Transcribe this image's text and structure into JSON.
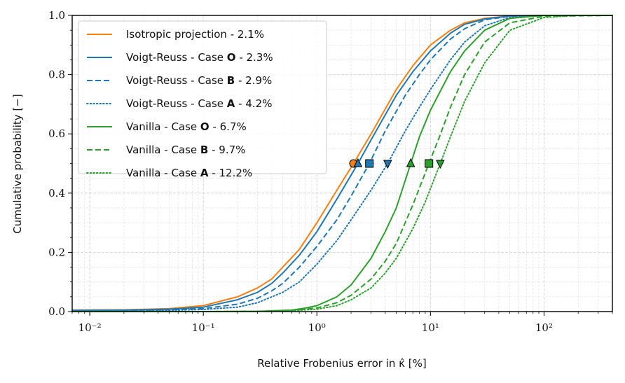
{
  "chart_data": {
    "type": "line",
    "xscale": "log",
    "xlim": [
      0.007,
      400
    ],
    "ylim": [
      0.0,
      1.0
    ],
    "xlabel": "Relative Frobenius error in κ̂ [%]",
    "ylabel": "Cumulative probability [−]",
    "x_ticks": [
      {
        "value": 0.01,
        "label": "10⁻²"
      },
      {
        "value": 0.1,
        "label": "10⁻¹"
      },
      {
        "value": 1,
        "label": "10⁰"
      },
      {
        "value": 10,
        "label": "10¹"
      },
      {
        "value": 100,
        "label": "10²"
      }
    ],
    "y_ticks": [
      {
        "value": 0.0,
        "label": "0.0"
      },
      {
        "value": 0.2,
        "label": "0.2"
      },
      {
        "value": 0.4,
        "label": "0.4"
      },
      {
        "value": 0.6,
        "label": "0.6"
      },
      {
        "value": 0.8,
        "label": "0.8"
      },
      {
        "value": 1.0,
        "label": "1.0"
      }
    ],
    "grid": true,
    "legend_position": "top-left",
    "series": [
      {
        "name": "Isotropic projection - 2.1%",
        "label": "Isotropic projection - ",
        "bold": "",
        "suffix": "2.1%",
        "color": "#ff7f0e",
        "style": "solid",
        "median": 2.1,
        "marker": "circle",
        "x": [
          0.007,
          0.02,
          0.05,
          0.1,
          0.2,
          0.3,
          0.4,
          0.5,
          0.7,
          1.0,
          1.5,
          2.1,
          3,
          5,
          7,
          10,
          15,
          20,
          30,
          50,
          100,
          400
        ],
        "y": [
          0.005,
          0.006,
          0.01,
          0.02,
          0.05,
          0.08,
          0.11,
          0.15,
          0.21,
          0.3,
          0.41,
          0.5,
          0.6,
          0.75,
          0.83,
          0.9,
          0.95,
          0.975,
          0.99,
          0.998,
          1.0,
          1.0
        ]
      },
      {
        "name": "Voigt-Reuss - Case O - 2.3%",
        "label": "Voigt-Reuss - Case ",
        "bold": "O",
        "suffix": " - 2.3%",
        "color": "#1f77b4",
        "style": "solid",
        "median": 2.3,
        "marker": "triangle-up",
        "x": [
          0.007,
          0.02,
          0.05,
          0.1,
          0.2,
          0.3,
          0.4,
          0.5,
          0.7,
          1.0,
          1.5,
          2.3,
          3,
          5,
          7,
          10,
          15,
          20,
          30,
          50,
          100,
          400
        ],
        "y": [
          0.004,
          0.005,
          0.008,
          0.015,
          0.04,
          0.065,
          0.095,
          0.13,
          0.19,
          0.27,
          0.38,
          0.5,
          0.58,
          0.73,
          0.81,
          0.88,
          0.94,
          0.97,
          0.988,
          0.998,
          1.0,
          1.0
        ]
      },
      {
        "name": "Voigt-Reuss - Case B - 2.9%",
        "label": "Voigt-Reuss - Case ",
        "bold": "B",
        "suffix": " - 2.9%",
        "color": "#1f77b4",
        "style": "dashed",
        "median": 2.9,
        "marker": "square",
        "x": [
          0.007,
          0.02,
          0.05,
          0.1,
          0.2,
          0.3,
          0.4,
          0.5,
          0.7,
          1.0,
          1.5,
          2.0,
          2.9,
          4,
          6,
          8,
          10,
          15,
          20,
          30,
          50,
          100,
          400
        ],
        "y": [
          0.003,
          0.004,
          0.006,
          0.01,
          0.025,
          0.045,
          0.07,
          0.095,
          0.15,
          0.22,
          0.31,
          0.39,
          0.5,
          0.61,
          0.73,
          0.8,
          0.85,
          0.92,
          0.955,
          0.985,
          0.997,
          1.0,
          1.0
        ]
      },
      {
        "name": "Voigt-Reuss - Case A - 4.2%",
        "label": "Voigt-Reuss - Case ",
        "bold": "A",
        "suffix": " - 4.2%",
        "color": "#1f77b4",
        "style": "dotted",
        "median": 4.2,
        "marker": "triangle-down",
        "x": [
          0.007,
          0.02,
          0.05,
          0.1,
          0.2,
          0.3,
          0.5,
          0.7,
          1.0,
          1.5,
          2.0,
          3.0,
          4.2,
          6,
          8,
          10,
          15,
          20,
          30,
          50,
          100,
          400
        ],
        "y": [
          0.002,
          0.003,
          0.004,
          0.007,
          0.015,
          0.03,
          0.065,
          0.1,
          0.16,
          0.24,
          0.31,
          0.41,
          0.5,
          0.61,
          0.69,
          0.75,
          0.85,
          0.91,
          0.965,
          0.993,
          1.0,
          1.0
        ]
      },
      {
        "name": "Vanilla - Case O - 6.7%",
        "label": "Vanilla - Case ",
        "bold": "O",
        "suffix": " - 6.7%",
        "color": "#2ca02c",
        "style": "solid",
        "median": 6.7,
        "marker": "triangle-up",
        "x": [
          0.007,
          0.1,
          0.3,
          0.6,
          0.8,
          1.0,
          1.5,
          2.0,
          3.0,
          4.0,
          5.0,
          6.7,
          8,
          10,
          15,
          20,
          30,
          50,
          100,
          400
        ],
        "y": [
          0.0,
          0.0,
          0.001,
          0.005,
          0.012,
          0.02,
          0.05,
          0.09,
          0.18,
          0.27,
          0.35,
          0.5,
          0.59,
          0.68,
          0.81,
          0.88,
          0.95,
          0.99,
          1.0,
          1.0
        ]
      },
      {
        "name": "Vanilla - Case B - 9.7%",
        "label": "Vanilla - Case ",
        "bold": "B",
        "suffix": " - 9.7%",
        "color": "#2ca02c",
        "style": "dashed",
        "median": 9.7,
        "marker": "square",
        "x": [
          0.007,
          0.1,
          0.3,
          0.6,
          1.0,
          1.5,
          2.0,
          3.0,
          4.0,
          5.0,
          7.0,
          9.7,
          12,
          15,
          20,
          30,
          50,
          100,
          400
        ],
        "y": [
          0.0,
          0.0,
          0.001,
          0.004,
          0.012,
          0.03,
          0.055,
          0.11,
          0.17,
          0.23,
          0.36,
          0.5,
          0.59,
          0.69,
          0.8,
          0.91,
          0.975,
          0.997,
          1.0
        ]
      },
      {
        "name": "Vanilla - Case A - 12.2%",
        "label": "Vanilla - Case ",
        "bold": "A",
        "suffix": " - 12.2%",
        "color": "#2ca02c",
        "style": "dotted",
        "median": 12.2,
        "marker": "triangle-down",
        "x": [
          0.007,
          0.1,
          0.3,
          0.6,
          1.0,
          1.5,
          2.0,
          3.0,
          4.0,
          5.0,
          7.0,
          9.0,
          12.2,
          15,
          20,
          30,
          50,
          100,
          200,
          400
        ],
        "y": [
          0.0,
          0.0,
          0.001,
          0.003,
          0.008,
          0.02,
          0.04,
          0.08,
          0.13,
          0.18,
          0.28,
          0.37,
          0.5,
          0.59,
          0.71,
          0.84,
          0.95,
          0.993,
          1.0,
          1.0
        ]
      }
    ]
  }
}
